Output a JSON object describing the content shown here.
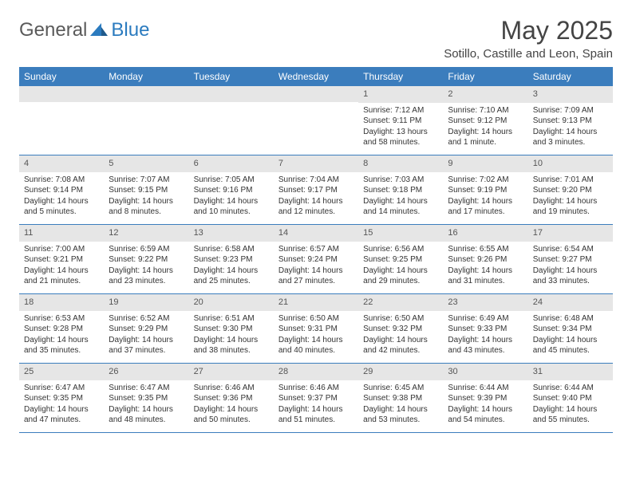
{
  "logo": {
    "text_left": "General",
    "text_right": "Blue",
    "icon_color": "#2b7bbf"
  },
  "title": "May 2025",
  "location": "Sotillo, Castille and Leon, Spain",
  "colors": {
    "header_bg": "#3b7dbd",
    "header_fg": "#ffffff",
    "band_bg": "#e6e6e6",
    "rule": "#3b7dbd",
    "text": "#333333"
  },
  "day_names": [
    "Sunday",
    "Monday",
    "Tuesday",
    "Wednesday",
    "Thursday",
    "Friday",
    "Saturday"
  ],
  "weeks": [
    [
      {
        "empty": true
      },
      {
        "empty": true
      },
      {
        "empty": true
      },
      {
        "empty": true
      },
      {
        "n": "1",
        "sr": "Sunrise: 7:12 AM",
        "ss": "Sunset: 9:11 PM",
        "dl1": "Daylight: 13 hours",
        "dl2": "and 58 minutes."
      },
      {
        "n": "2",
        "sr": "Sunrise: 7:10 AM",
        "ss": "Sunset: 9:12 PM",
        "dl1": "Daylight: 14 hours",
        "dl2": "and 1 minute."
      },
      {
        "n": "3",
        "sr": "Sunrise: 7:09 AM",
        "ss": "Sunset: 9:13 PM",
        "dl1": "Daylight: 14 hours",
        "dl2": "and 3 minutes."
      }
    ],
    [
      {
        "n": "4",
        "sr": "Sunrise: 7:08 AM",
        "ss": "Sunset: 9:14 PM",
        "dl1": "Daylight: 14 hours",
        "dl2": "and 5 minutes."
      },
      {
        "n": "5",
        "sr": "Sunrise: 7:07 AM",
        "ss": "Sunset: 9:15 PM",
        "dl1": "Daylight: 14 hours",
        "dl2": "and 8 minutes."
      },
      {
        "n": "6",
        "sr": "Sunrise: 7:05 AM",
        "ss": "Sunset: 9:16 PM",
        "dl1": "Daylight: 14 hours",
        "dl2": "and 10 minutes."
      },
      {
        "n": "7",
        "sr": "Sunrise: 7:04 AM",
        "ss": "Sunset: 9:17 PM",
        "dl1": "Daylight: 14 hours",
        "dl2": "and 12 minutes."
      },
      {
        "n": "8",
        "sr": "Sunrise: 7:03 AM",
        "ss": "Sunset: 9:18 PM",
        "dl1": "Daylight: 14 hours",
        "dl2": "and 14 minutes."
      },
      {
        "n": "9",
        "sr": "Sunrise: 7:02 AM",
        "ss": "Sunset: 9:19 PM",
        "dl1": "Daylight: 14 hours",
        "dl2": "and 17 minutes."
      },
      {
        "n": "10",
        "sr": "Sunrise: 7:01 AM",
        "ss": "Sunset: 9:20 PM",
        "dl1": "Daylight: 14 hours",
        "dl2": "and 19 minutes."
      }
    ],
    [
      {
        "n": "11",
        "sr": "Sunrise: 7:00 AM",
        "ss": "Sunset: 9:21 PM",
        "dl1": "Daylight: 14 hours",
        "dl2": "and 21 minutes."
      },
      {
        "n": "12",
        "sr": "Sunrise: 6:59 AM",
        "ss": "Sunset: 9:22 PM",
        "dl1": "Daylight: 14 hours",
        "dl2": "and 23 minutes."
      },
      {
        "n": "13",
        "sr": "Sunrise: 6:58 AM",
        "ss": "Sunset: 9:23 PM",
        "dl1": "Daylight: 14 hours",
        "dl2": "and 25 minutes."
      },
      {
        "n": "14",
        "sr": "Sunrise: 6:57 AM",
        "ss": "Sunset: 9:24 PM",
        "dl1": "Daylight: 14 hours",
        "dl2": "and 27 minutes."
      },
      {
        "n": "15",
        "sr": "Sunrise: 6:56 AM",
        "ss": "Sunset: 9:25 PM",
        "dl1": "Daylight: 14 hours",
        "dl2": "and 29 minutes."
      },
      {
        "n": "16",
        "sr": "Sunrise: 6:55 AM",
        "ss": "Sunset: 9:26 PM",
        "dl1": "Daylight: 14 hours",
        "dl2": "and 31 minutes."
      },
      {
        "n": "17",
        "sr": "Sunrise: 6:54 AM",
        "ss": "Sunset: 9:27 PM",
        "dl1": "Daylight: 14 hours",
        "dl2": "and 33 minutes."
      }
    ],
    [
      {
        "n": "18",
        "sr": "Sunrise: 6:53 AM",
        "ss": "Sunset: 9:28 PM",
        "dl1": "Daylight: 14 hours",
        "dl2": "and 35 minutes."
      },
      {
        "n": "19",
        "sr": "Sunrise: 6:52 AM",
        "ss": "Sunset: 9:29 PM",
        "dl1": "Daylight: 14 hours",
        "dl2": "and 37 minutes."
      },
      {
        "n": "20",
        "sr": "Sunrise: 6:51 AM",
        "ss": "Sunset: 9:30 PM",
        "dl1": "Daylight: 14 hours",
        "dl2": "and 38 minutes."
      },
      {
        "n": "21",
        "sr": "Sunrise: 6:50 AM",
        "ss": "Sunset: 9:31 PM",
        "dl1": "Daylight: 14 hours",
        "dl2": "and 40 minutes."
      },
      {
        "n": "22",
        "sr": "Sunrise: 6:50 AM",
        "ss": "Sunset: 9:32 PM",
        "dl1": "Daylight: 14 hours",
        "dl2": "and 42 minutes."
      },
      {
        "n": "23",
        "sr": "Sunrise: 6:49 AM",
        "ss": "Sunset: 9:33 PM",
        "dl1": "Daylight: 14 hours",
        "dl2": "and 43 minutes."
      },
      {
        "n": "24",
        "sr": "Sunrise: 6:48 AM",
        "ss": "Sunset: 9:34 PM",
        "dl1": "Daylight: 14 hours",
        "dl2": "and 45 minutes."
      }
    ],
    [
      {
        "n": "25",
        "sr": "Sunrise: 6:47 AM",
        "ss": "Sunset: 9:35 PM",
        "dl1": "Daylight: 14 hours",
        "dl2": "and 47 minutes."
      },
      {
        "n": "26",
        "sr": "Sunrise: 6:47 AM",
        "ss": "Sunset: 9:35 PM",
        "dl1": "Daylight: 14 hours",
        "dl2": "and 48 minutes."
      },
      {
        "n": "27",
        "sr": "Sunrise: 6:46 AM",
        "ss": "Sunset: 9:36 PM",
        "dl1": "Daylight: 14 hours",
        "dl2": "and 50 minutes."
      },
      {
        "n": "28",
        "sr": "Sunrise: 6:46 AM",
        "ss": "Sunset: 9:37 PM",
        "dl1": "Daylight: 14 hours",
        "dl2": "and 51 minutes."
      },
      {
        "n": "29",
        "sr": "Sunrise: 6:45 AM",
        "ss": "Sunset: 9:38 PM",
        "dl1": "Daylight: 14 hours",
        "dl2": "and 53 minutes."
      },
      {
        "n": "30",
        "sr": "Sunrise: 6:44 AM",
        "ss": "Sunset: 9:39 PM",
        "dl1": "Daylight: 14 hours",
        "dl2": "and 54 minutes."
      },
      {
        "n": "31",
        "sr": "Sunrise: 6:44 AM",
        "ss": "Sunset: 9:40 PM",
        "dl1": "Daylight: 14 hours",
        "dl2": "and 55 minutes."
      }
    ]
  ]
}
